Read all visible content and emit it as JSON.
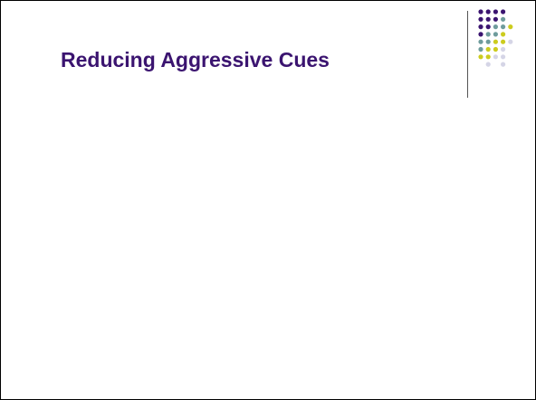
{
  "slide": {
    "title": "Reducing Aggressive Cues",
    "title_color": "#3b1470"
  },
  "decoration": {
    "icon": "dot-grid-icon",
    "colors": {
      "purple": "#3b1470",
      "teal": "#6f9c9c",
      "yellow": "#cccc1e",
      "lavender": "#d5d5e6"
    },
    "rows": [
      [
        "purple",
        "purple",
        "purple",
        "purple",
        "none"
      ],
      [
        "purple",
        "purple",
        "purple",
        "teal",
        "none"
      ],
      [
        "purple",
        "purple",
        "teal",
        "teal",
        "yellow"
      ],
      [
        "purple",
        "teal",
        "teal",
        "yellow",
        "none"
      ],
      [
        "teal",
        "teal",
        "yellow",
        "yellow",
        "lavender"
      ],
      [
        "teal",
        "yellow",
        "yellow",
        "lavender",
        "none"
      ],
      [
        "yellow",
        "yellow",
        "lavender",
        "lavender",
        "none"
      ],
      [
        "none",
        "lavender",
        "none",
        "lavender",
        "none"
      ]
    ]
  }
}
